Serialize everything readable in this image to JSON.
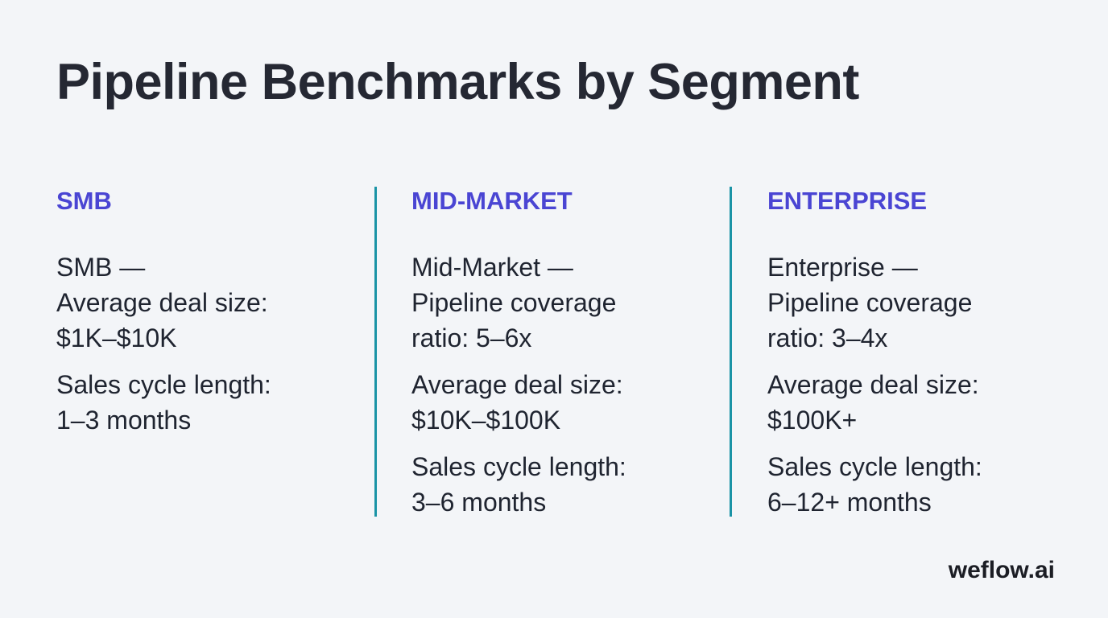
{
  "title": "Pipeline Benchmarks by Segment",
  "columns": [
    {
      "heading": "SMB",
      "paragraphs": [
        [
          "SMB —",
          "Average deal size:",
          "$1K–$10K"
        ],
        [
          "Sales cycle length:",
          "1–3 months"
        ]
      ]
    },
    {
      "heading": "MID-MARKET",
      "paragraphs": [
        [
          "Mid-Market —",
          "Pipeline coverage",
          "ratio: 5–6x"
        ],
        [
          "Average deal size:",
          "$10K–$100K"
        ],
        [
          "Sales cycle length:",
          "3–6 months"
        ]
      ]
    },
    {
      "heading": "ENTERPRISE",
      "paragraphs": [
        [
          "Enterprise —",
          "Pipeline coverage",
          "ratio: 3–4x"
        ],
        [
          "Average deal size:",
          "$100K+"
        ],
        [
          "Sales cycle length:",
          "6–12+ months"
        ]
      ]
    }
  ],
  "brand": "weflow.ai",
  "colors": {
    "background": "#f3f5f8",
    "heading_accent": "#4a45d3",
    "divider": "#1a93a6",
    "text": "#1f2430"
  }
}
